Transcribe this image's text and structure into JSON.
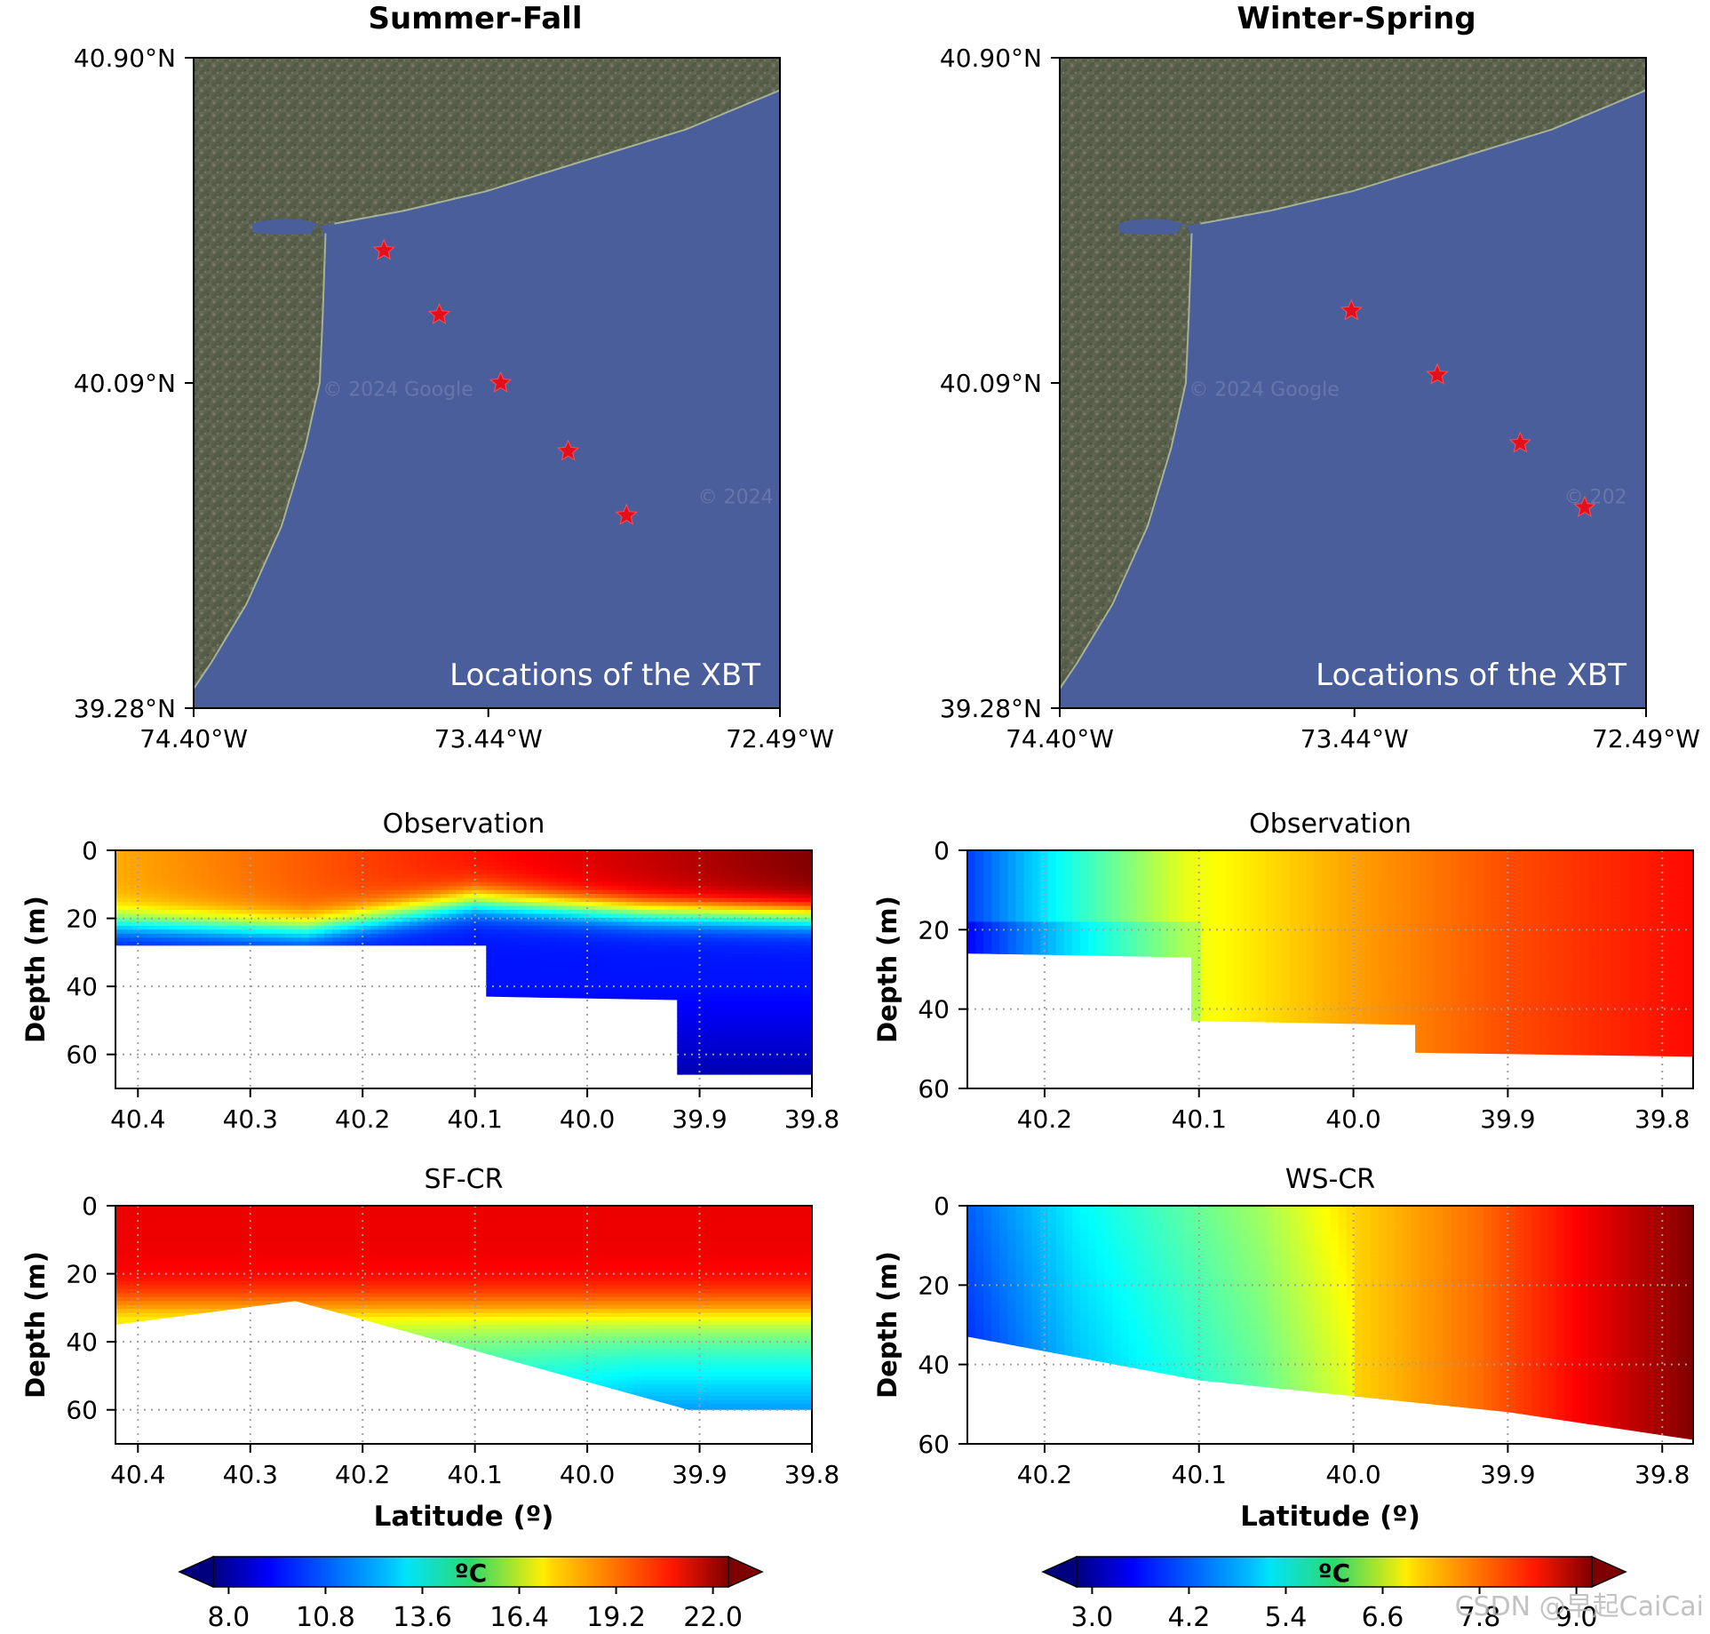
{
  "panels": {
    "left_title": "Summer-Fall",
    "right_title": "Winter-Spring"
  },
  "colors": {
    "ocean": "#4a5e9c",
    "land": "#5f6450",
    "star": "#e3101c",
    "grid": "#a0a0a0",
    "axes": "#000000"
  },
  "watermark": "CSDN @早起CaiCai",
  "chart_data": [
    {
      "id": "sf-map",
      "type": "scatter",
      "title": "Summer-Fall",
      "annotation": "Locations of the XBT",
      "map_watermark": "© 2024 Google",
      "map_watermark_2": "© 2024",
      "xlim": [
        -74.4,
        -72.49
      ],
      "ylim": [
        39.28,
        40.9
      ],
      "x_ticks": [
        -74.4,
        -73.44,
        -72.49
      ],
      "x_tick_labels": [
        "74.40°W",
        "73.44°W",
        "72.49°W"
      ],
      "y_ticks": [
        39.28,
        40.09,
        40.9
      ],
      "y_tick_labels": [
        "39.28°N",
        "40.09°N",
        "40.90°N"
      ],
      "marker": "star",
      "points": [
        {
          "lon": -73.78,
          "lat": 40.42
        },
        {
          "lon": -73.6,
          "lat": 40.26
        },
        {
          "lon": -73.4,
          "lat": 40.09
        },
        {
          "lon": -73.18,
          "lat": 39.92
        },
        {
          "lon": -72.99,
          "lat": 39.76
        }
      ]
    },
    {
      "id": "ws-map",
      "type": "scatter",
      "title": "Winter-Spring",
      "annotation": "Locations of the XBT",
      "map_watermark": "© 2024 Google",
      "map_watermark_2": "© 202",
      "xlim": [
        -74.4,
        -72.49
      ],
      "ylim": [
        39.28,
        40.9
      ],
      "x_ticks": [
        -74.4,
        -73.44,
        -72.49
      ],
      "x_tick_labels": [
        "74.40°W",
        "73.44°W",
        "72.49°W"
      ],
      "y_ticks": [
        39.28,
        40.09,
        40.9
      ],
      "y_tick_labels": [
        "39.28°N",
        "40.09°N",
        "40.90°N"
      ],
      "marker": "star",
      "points": [
        {
          "lon": -73.45,
          "lat": 40.27
        },
        {
          "lon": -73.17,
          "lat": 40.11
        },
        {
          "lon": -72.9,
          "lat": 39.94
        },
        {
          "lon": -72.69,
          "lat": 39.78
        }
      ]
    },
    {
      "id": "sf-obs",
      "type": "heatmap",
      "title": "Observation",
      "ylabel": "Depth (m)",
      "xlabel": "",
      "xlim": [
        40.42,
        39.8
      ],
      "ylim": [
        0,
        70
      ],
      "x_ticks": [
        40.4,
        40.3,
        40.2,
        40.1,
        40.0,
        39.9,
        39.8
      ],
      "x_tick_labels": [
        "40.4",
        "40.3",
        "40.2",
        "40.1",
        "40.0",
        "39.9",
        "39.8"
      ],
      "y_ticks": [
        0,
        20,
        40,
        60
      ],
      "y_tick_labels": [
        "0",
        "20",
        "40",
        "60"
      ],
      "grid": true,
      "colorbar": "sf",
      "bottom_depth": [
        [
          40.42,
          28
        ],
        [
          40.09,
          28
        ],
        [
          40.09,
          43
        ],
        [
          39.92,
          44
        ],
        [
          39.92,
          66
        ],
        [
          39.8,
          66
        ]
      ],
      "interface_depth": [
        [
          40.42,
          21
        ],
        [
          40.25,
          23
        ],
        [
          40.1,
          15
        ],
        [
          39.95,
          18
        ],
        [
          39.8,
          19
        ]
      ],
      "temp_top": 20.5,
      "temp_mid": 14.0,
      "temp_bottom": 10.0
    },
    {
      "id": "ws-obs",
      "type": "heatmap",
      "title": "Observation",
      "ylabel": "Depth (m)",
      "xlabel": "",
      "xlim": [
        40.25,
        39.78
      ],
      "ylim": [
        0,
        60
      ],
      "x_ticks": [
        40.2,
        40.1,
        40.0,
        39.9,
        39.8
      ],
      "x_tick_labels": [
        "40.2",
        "40.1",
        "40.0",
        "39.9",
        "39.8"
      ],
      "y_ticks": [
        0,
        20,
        40,
        60
      ],
      "y_tick_labels": [
        "0",
        "20",
        "40",
        "60"
      ],
      "grid": true,
      "colorbar": "ws",
      "bottom_depth": [
        [
          40.25,
          26
        ],
        [
          40.105,
          27
        ],
        [
          40.105,
          43
        ],
        [
          39.96,
          44
        ],
        [
          39.96,
          51
        ],
        [
          39.78,
          52
        ]
      ],
      "temp_stops": [
        [
          40.25,
          4.1
        ],
        [
          40.19,
          5.3
        ],
        [
          40.11,
          6.6
        ],
        [
          40.0,
          7.3
        ],
        [
          39.9,
          7.8
        ],
        [
          39.78,
          8.2
        ]
      ]
    },
    {
      "id": "sf-cr",
      "type": "heatmap",
      "title": "SF-CR",
      "ylabel": "Depth (m)",
      "xlabel": "Latitude (º)",
      "xlim": [
        40.42,
        39.8
      ],
      "ylim": [
        0,
        70
      ],
      "x_ticks": [
        40.4,
        40.3,
        40.2,
        40.1,
        40.0,
        39.9,
        39.8
      ],
      "x_tick_labels": [
        "40.4",
        "40.3",
        "40.2",
        "40.1",
        "40.0",
        "39.9",
        "39.8"
      ],
      "y_ticks": [
        0,
        20,
        40,
        60
      ],
      "y_tick_labels": [
        "0",
        "20",
        "40",
        "60"
      ],
      "grid": true,
      "colorbar": "sf",
      "bottom_depth": [
        [
          40.42,
          35
        ],
        [
          40.26,
          28
        ],
        [
          39.91,
          60
        ],
        [
          39.8,
          60
        ]
      ],
      "temp_top": 20.0,
      "temp_mid": 17.5,
      "temp_bottom": 12.0
    },
    {
      "id": "ws-cr",
      "type": "heatmap",
      "title": "WS-CR",
      "ylabel": "Depth (m)",
      "xlabel": "Latitude (º)",
      "xlim": [
        40.25,
        39.78
      ],
      "ylim": [
        0,
        60
      ],
      "x_ticks": [
        40.2,
        40.1,
        40.0,
        39.9,
        39.8
      ],
      "x_tick_labels": [
        "40.2",
        "40.1",
        "40.0",
        "39.9",
        "39.8"
      ],
      "y_ticks": [
        0,
        20,
        40,
        60
      ],
      "y_tick_labels": [
        "0",
        "20",
        "40",
        "60"
      ],
      "grid": true,
      "colorbar": "ws",
      "bottom_depth": [
        [
          40.25,
          33
        ],
        [
          40.1,
          44
        ],
        [
          39.9,
          52
        ],
        [
          39.78,
          59
        ]
      ],
      "temp_stops": [
        [
          40.25,
          4.3
        ],
        [
          40.18,
          5.2
        ],
        [
          40.06,
          6.2
        ],
        [
          40.0,
          7.0
        ],
        [
          39.92,
          7.6
        ],
        [
          39.85,
          8.3
        ],
        [
          39.78,
          9.0
        ]
      ]
    }
  ],
  "colorbars": {
    "sf": {
      "label": "ºC",
      "min": 8.0,
      "max": 22.0,
      "ticks": [
        8.0,
        10.8,
        13.6,
        16.4,
        19.2,
        22.0
      ],
      "tick_labels": [
        "8.0",
        "10.8",
        "13.6",
        "16.4",
        "19.2",
        "22.0"
      ],
      "extend": "both",
      "colormap": "jet"
    },
    "ws": {
      "label": "ºC",
      "min": 3.0,
      "max": 9.0,
      "ticks": [
        3.0,
        4.2,
        5.4,
        6.6,
        7.8,
        9.0
      ],
      "tick_labels": [
        "3.0",
        "4.2",
        "5.4",
        "6.6",
        "7.8",
        "9.0"
      ],
      "extend": "both",
      "colormap": "jet"
    }
  }
}
